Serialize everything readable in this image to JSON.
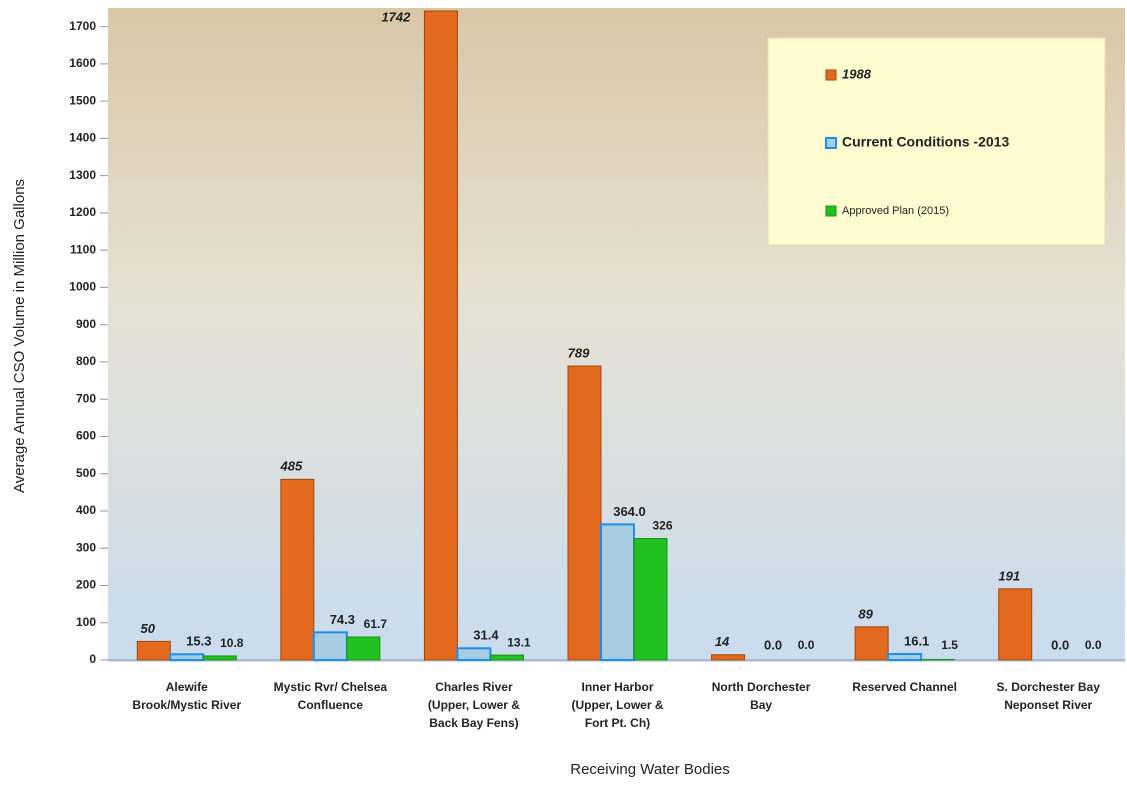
{
  "chart_data": {
    "type": "bar",
    "y_label": "Average Annual CSO Volume in Million Gallons",
    "x_label": "Receiving Water Bodies",
    "categories": [
      [
        "Alewife",
        "Brook/Mystic River"
      ],
      [
        "Mystic Rvr/ Chelsea",
        "Confluence"
      ],
      [
        "Charles River",
        "(Upper, Lower &",
        "Back Bay Fens)"
      ],
      [
        "Inner Harbor",
        "(Upper, Lower &",
        "Fort Pt. Ch)"
      ],
      [
        "North Dorchester",
        "Bay"
      ],
      [
        "Reserved Channel"
      ],
      [
        "S. Dorchester Bay",
        "Neponset River"
      ]
    ],
    "series": [
      {
        "name": "1988",
        "color": "#e2691e",
        "values": [
          50,
          485,
          1742,
          789,
          14,
          89,
          191
        ]
      },
      {
        "name": "Current Conditions -2013",
        "color": "#a8cde2",
        "values": [
          15.3,
          74.3,
          31.4,
          364.0,
          0.0,
          16.1,
          0.0
        ],
        "value_labels": [
          "15.3",
          "74.3",
          "31.4",
          "364.0",
          "0.0",
          "16.1",
          "0.0"
        ]
      },
      {
        "name": "Approved Plan (2015)",
        "color": "#20c020",
        "values": [
          10.8,
          61.7,
          13.1,
          326,
          0.0,
          1.5,
          0.0
        ],
        "value_labels": [
          "10.8",
          "61.7",
          "13.1",
          "326",
          "0.0",
          "1.5",
          "0.0"
        ]
      }
    ],
    "ylim": [
      0,
      1750
    ],
    "yticks": [
      0,
      100,
      200,
      300,
      400,
      500,
      600,
      700,
      800,
      900,
      1000,
      1100,
      1200,
      1300,
      1400,
      1500,
      1600,
      1700
    ],
    "legend": "upper right"
  }
}
